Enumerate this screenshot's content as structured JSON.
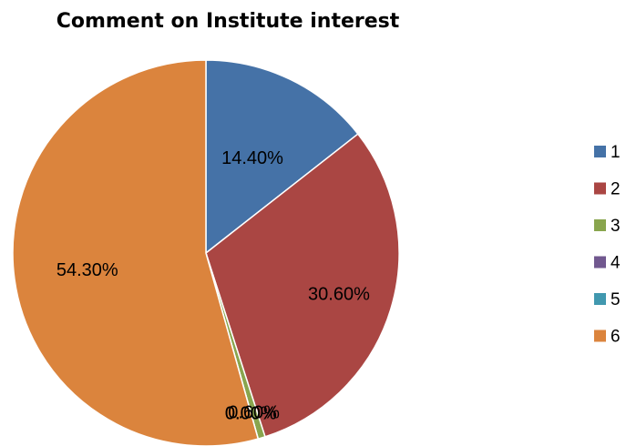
{
  "chart_data": {
    "type": "pie",
    "title": "Comment on Institute interest",
    "categories": [
      "1",
      "2",
      "3",
      "4",
      "5",
      "6"
    ],
    "values": [
      14.4,
      30.6,
      0.6,
      0.0,
      0.0,
      54.3
    ],
    "data_labels": [
      "14.40%",
      "30.60%",
      "0.60%",
      "0.00%",
      "0.00%",
      "54.30%"
    ],
    "colors": [
      "#4572A7",
      "#AA4643",
      "#89A54E",
      "#71588F",
      "#4198AF",
      "#DB843D"
    ],
    "legend_position": "right",
    "start_angle_deg": 0,
    "direction": "clockwise"
  }
}
